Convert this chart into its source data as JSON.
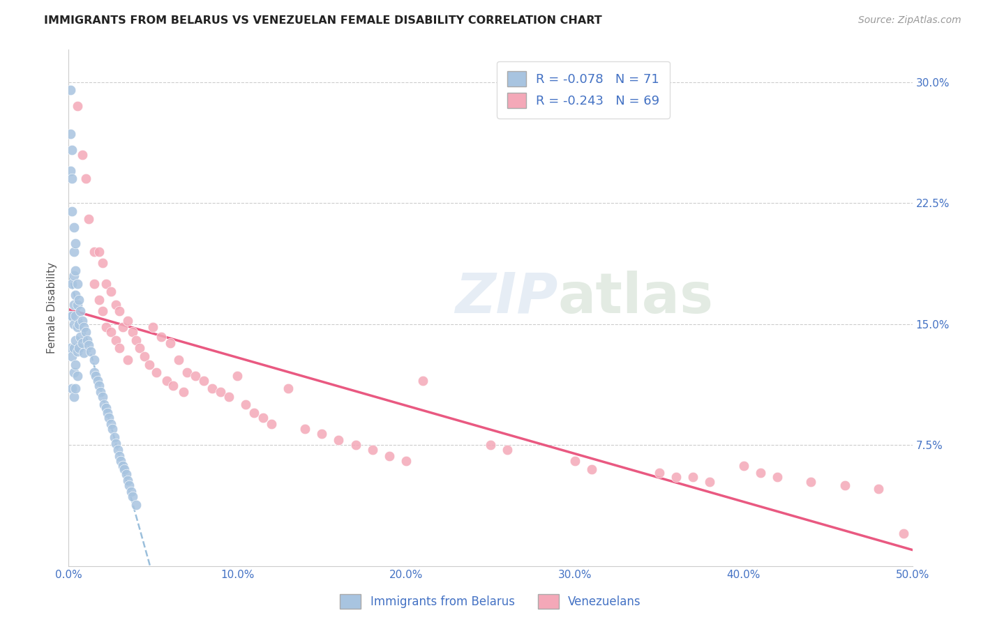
{
  "title": "IMMIGRANTS FROM BELARUS VS VENEZUELAN FEMALE DISABILITY CORRELATION CHART",
  "source": "Source: ZipAtlas.com",
  "ylabel": "Female Disability",
  "watermark": "ZIPatlas",
  "xlim": [
    0.0,
    0.5
  ],
  "ylim": [
    0.0,
    0.32
  ],
  "xticks": [
    0.0,
    0.1,
    0.2,
    0.3,
    0.4,
    0.5
  ],
  "yticks": [
    0.075,
    0.15,
    0.225,
    0.3
  ],
  "xticklabels": [
    "0.0%",
    "10.0%",
    "20.0%",
    "30.0%",
    "40.0%",
    "50.0%"
  ],
  "yticklabels": [
    "7.5%",
    "15.0%",
    "22.5%",
    "30.0%"
  ],
  "legend_labels": [
    "Immigrants from Belarus",
    "Venezuelans"
  ],
  "belarus_color": "#a8c4e0",
  "venezuela_color": "#f4a8b8",
  "belarus_R": -0.078,
  "belarus_N": 71,
  "venezuela_R": -0.243,
  "venezuela_N": 69,
  "trendline_color_belarus": "#90b8d8",
  "trendline_color_venezuela": "#e8507a",
  "label_color": "#4472c4",
  "background_color": "#ffffff",
  "belarus_x": [
    0.001,
    0.001,
    0.001,
    0.001,
    0.001,
    0.002,
    0.002,
    0.002,
    0.002,
    0.002,
    0.002,
    0.002,
    0.003,
    0.003,
    0.003,
    0.003,
    0.003,
    0.003,
    0.003,
    0.003,
    0.004,
    0.004,
    0.004,
    0.004,
    0.004,
    0.004,
    0.004,
    0.005,
    0.005,
    0.005,
    0.005,
    0.005,
    0.006,
    0.006,
    0.006,
    0.007,
    0.007,
    0.008,
    0.008,
    0.009,
    0.009,
    0.01,
    0.011,
    0.012,
    0.013,
    0.015,
    0.015,
    0.016,
    0.017,
    0.018,
    0.019,
    0.02,
    0.021,
    0.022,
    0.023,
    0.024,
    0.025,
    0.026,
    0.027,
    0.028,
    0.029,
    0.03,
    0.031,
    0.032,
    0.033,
    0.034,
    0.035,
    0.036,
    0.037,
    0.038,
    0.04
  ],
  "belarus_y": [
    0.295,
    0.268,
    0.245,
    0.155,
    0.135,
    0.258,
    0.24,
    0.22,
    0.175,
    0.155,
    0.13,
    0.11,
    0.21,
    0.195,
    0.18,
    0.162,
    0.15,
    0.135,
    0.12,
    0.105,
    0.2,
    0.183,
    0.168,
    0.155,
    0.14,
    0.125,
    0.11,
    0.175,
    0.162,
    0.148,
    0.133,
    0.118,
    0.165,
    0.15,
    0.135,
    0.158,
    0.142,
    0.152,
    0.138,
    0.148,
    0.132,
    0.145,
    0.14,
    0.137,
    0.133,
    0.128,
    0.12,
    0.118,
    0.115,
    0.112,
    0.108,
    0.105,
    0.1,
    0.098,
    0.095,
    0.092,
    0.088,
    0.085,
    0.08,
    0.076,
    0.072,
    0.068,
    0.065,
    0.062,
    0.06,
    0.057,
    0.053,
    0.05,
    0.046,
    0.043,
    0.038
  ],
  "venezuela_x": [
    0.005,
    0.008,
    0.01,
    0.012,
    0.015,
    0.015,
    0.018,
    0.018,
    0.02,
    0.02,
    0.022,
    0.022,
    0.025,
    0.025,
    0.028,
    0.028,
    0.03,
    0.03,
    0.032,
    0.035,
    0.035,
    0.038,
    0.04,
    0.042,
    0.045,
    0.048,
    0.05,
    0.052,
    0.055,
    0.058,
    0.06,
    0.062,
    0.065,
    0.068,
    0.07,
    0.075,
    0.08,
    0.085,
    0.09,
    0.095,
    0.1,
    0.105,
    0.11,
    0.115,
    0.12,
    0.13,
    0.14,
    0.15,
    0.16,
    0.17,
    0.18,
    0.19,
    0.2,
    0.21,
    0.25,
    0.26,
    0.3,
    0.31,
    0.35,
    0.36,
    0.37,
    0.38,
    0.4,
    0.41,
    0.42,
    0.44,
    0.46,
    0.48,
    0.495
  ],
  "venezuela_y": [
    0.285,
    0.255,
    0.24,
    0.215,
    0.195,
    0.175,
    0.195,
    0.165,
    0.188,
    0.158,
    0.175,
    0.148,
    0.17,
    0.145,
    0.162,
    0.14,
    0.158,
    0.135,
    0.148,
    0.152,
    0.128,
    0.145,
    0.14,
    0.135,
    0.13,
    0.125,
    0.148,
    0.12,
    0.142,
    0.115,
    0.138,
    0.112,
    0.128,
    0.108,
    0.12,
    0.118,
    0.115,
    0.11,
    0.108,
    0.105,
    0.118,
    0.1,
    0.095,
    0.092,
    0.088,
    0.11,
    0.085,
    0.082,
    0.078,
    0.075,
    0.072,
    0.068,
    0.065,
    0.115,
    0.075,
    0.072,
    0.065,
    0.06,
    0.058,
    0.055,
    0.055,
    0.052,
    0.062,
    0.058,
    0.055,
    0.052,
    0.05,
    0.048,
    0.02
  ]
}
